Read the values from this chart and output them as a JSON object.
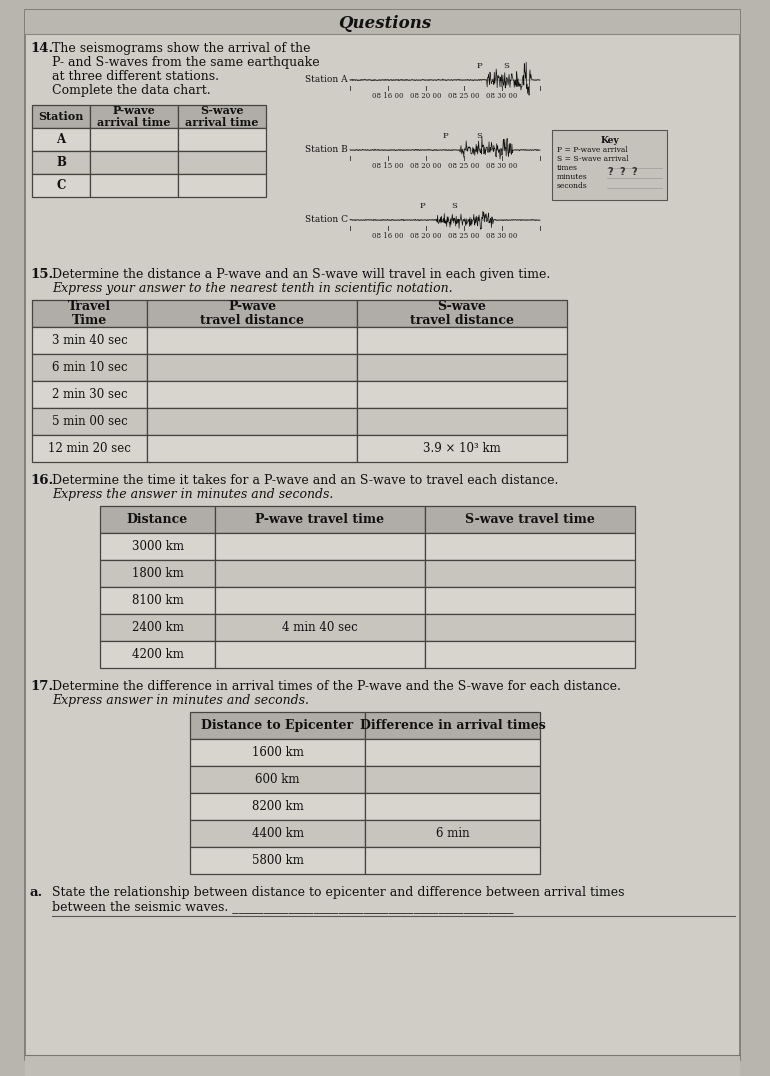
{
  "title": "Questions",
  "page_bg": "#b8b5ae",
  "content_bg": "#d0cdc7",
  "table_header_bg": "#a8a5a0",
  "table_row_bg1": "#d8d5cf",
  "table_row_bg2": "#c8c5bf",
  "text_color": "#111111",
  "q14_num": "14.",
  "q14_line1": "The seismograms show the arrival of the",
  "q14_line2": "P- and S-waves from the same earthquake",
  "q14_line3": "at three different stations.",
  "q14_line4": "Complete the data chart.",
  "table14_headers": [
    "Station",
    "P-wave\narrival time",
    "S-wave\narrival time"
  ],
  "table14_rows": [
    [
      "A",
      "",
      ""
    ],
    [
      "B",
      "",
      ""
    ],
    [
      "C",
      "",
      ""
    ]
  ],
  "station_labels": [
    "Station A",
    "Station B",
    "Station C"
  ],
  "station_times_a": [
    "08 16 00",
    "08 20 00",
    "08 25 00",
    "08 30 00"
  ],
  "station_times_b": [
    "08 15 00",
    "08 20 00",
    "08 25 00",
    "08 30 00"
  ],
  "station_times_c": [
    "08 16 00",
    "08 20 00",
    "08 25 00",
    "08 30 00"
  ],
  "key_lines": [
    "Key",
    "P = P-wave arrival",
    "S = S-wave arrival",
    "times",
    "minutes",
    "seconds"
  ],
  "q15_num": "15.",
  "q15_line1": "Determine the distance a P-wave and an S-wave will travel in each given time.",
  "q15_line2": "Express your answer to the nearest tenth in scientific notation.",
  "table15_headers": [
    "Travel\nTime",
    "P-wave\ntravel distance",
    "S-wave\ntravel distance"
  ],
  "table15_rows": [
    [
      "3 min 40 sec",
      "",
      ""
    ],
    [
      "6 min 10 sec",
      "",
      ""
    ],
    [
      "2 min 30 sec",
      "",
      ""
    ],
    [
      "5 min 00 sec",
      "",
      ""
    ],
    [
      "12 min 20 sec",
      "",
      "3.9 × 10³ km"
    ]
  ],
  "q16_num": "16.",
  "q16_line1": "Determine the time it takes for a P-wave and an S-wave to travel each distance.",
  "q16_line2": "Express the answer in minutes and seconds.",
  "table16_headers": [
    "Distance",
    "P-wave travel time",
    "S-wave travel time"
  ],
  "table16_rows": [
    [
      "3000 km",
      "",
      ""
    ],
    [
      "1800 km",
      "",
      ""
    ],
    [
      "8100 km",
      "",
      ""
    ],
    [
      "2400 km",
      "4 min 40 sec",
      ""
    ],
    [
      "4200 km",
      "",
      ""
    ]
  ],
  "q17_num": "17.",
  "q17_line1": "Determine the difference in arrival times of the P-wave and the S-wave for each distance.",
  "q17_line2": "Express answer in minutes and seconds.",
  "table17_headers": [
    "Distance to Epicenter",
    "Difference in arrival times"
  ],
  "table17_rows": [
    [
      "1600 km",
      ""
    ],
    [
      "600 km",
      ""
    ],
    [
      "8200 km",
      ""
    ],
    [
      "4400 km",
      "6 min"
    ],
    [
      "5800 km",
      ""
    ]
  ],
  "q17a_letter": "a.",
  "q17a_line1": "State the relationship between distance to epicenter and difference between arrival times",
  "q17a_line2": "between the seismic waves. _____________________________________________",
  "q17a_line3": "_______________________________________________________________________________"
}
